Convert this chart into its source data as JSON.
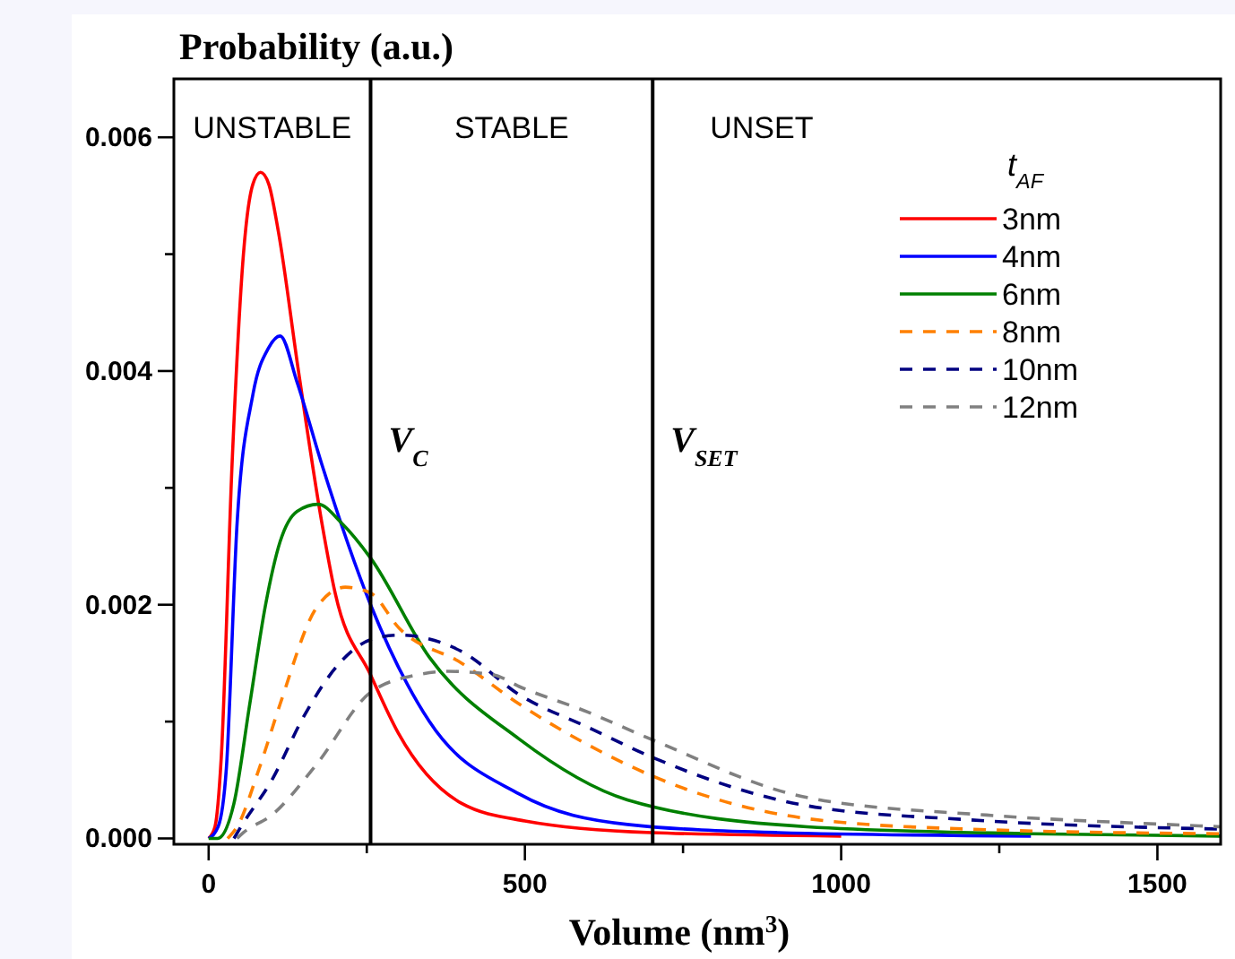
{
  "chart_data": {
    "type": "line",
    "title": "Probability (a.u.)",
    "xlabel": "Volume (nm$^{3}$)",
    "legend_title": "t$_{AF}$",
    "legend": "top right",
    "xlim": [
      -55,
      1600
    ],
    "ylim": [
      -5e-05,
      0.0065
    ],
    "xticks": [
      0,
      {
        "value": 250,
        "label": null
      },
      500,
      {
        "value": 750,
        "label": null
      },
      1000,
      {
        "value": 1250,
        "label": null
      },
      1500
    ],
    "yticks": [
      {
        "value": 0,
        "label": "0.000"
      },
      {
        "value": 0.001,
        "label": null
      },
      0.002,
      {
        "value": 0.003,
        "label": null
      },
      0.004,
      {
        "value": 0.005,
        "label": null
      },
      0.006
    ],
    "ref_lines": [
      {
        "axis": "x",
        "value": 256,
        "label": "V$_{C}$",
        "color": "#000000"
      },
      {
        "axis": "x",
        "value": 702,
        "label": "V$_{SET}$",
        "color": "#000000"
      }
    ],
    "annotations": [
      "UNSTABLE",
      "STABLE",
      "UNSET"
    ],
    "series": [
      {
        "name": "3nm",
        "color": "#ff0000",
        "line_style": "solid",
        "x": [
          0,
          10,
          20,
          37,
          55,
          70,
          82,
          95,
          110,
          142,
          179,
          200,
          256,
          300,
          400,
          500,
          700,
          1000
        ],
        "values": [
          0,
          0.0001,
          0.0007,
          0.0032,
          0.005,
          0.0056,
          0.0057,
          0.0056,
          0.0052,
          0.004,
          0.0027,
          0.0021,
          0.0014,
          0.0009,
          0.0003,
          0.00015,
          5e-05,
          2e-05
        ]
      },
      {
        "name": "4nm",
        "color": "#0000ff",
        "line_style": "solid",
        "x": [
          0,
          15,
          28,
          45,
          70,
          95,
          113,
          140,
          179,
          256,
          349,
          491,
          662,
          900,
          1300
        ],
        "values": [
          0,
          0.0001,
          0.0006,
          0.0027,
          0.0038,
          0.0042,
          0.0043,
          0.0039,
          0.0032,
          0.002,
          0.001,
          0.00038,
          0.00012,
          5e-05,
          2e-05
        ]
      },
      {
        "name": "6nm",
        "color": "#008000",
        "line_style": "solid",
        "x": [
          0,
          14,
          40,
          65,
          90,
          113,
          140,
          173,
          210,
          256,
          349,
          491,
          662,
          946,
          1300,
          1600
        ],
        "values": [
          0,
          0,
          0.0003,
          0.00115,
          0.002,
          0.00254,
          0.0028,
          0.00286,
          0.0027,
          0.0024,
          0.00155,
          0.00085,
          0.00033,
          0.0001,
          4e-05,
          2e-05
        ]
      },
      {
        "name": "8nm",
        "color": "#ff8000",
        "line_style": "dashed",
        "x": [
          30,
          45,
          80,
          113,
          170,
          216,
          256,
          301,
          400,
          491,
          600,
          699,
          946,
          1200,
          1600
        ],
        "values": [
          0,
          0.0001,
          0.0006,
          0.00115,
          0.00197,
          0.00215,
          0.0021,
          0.0018,
          0.0015,
          0.00115,
          0.0008,
          0.00054,
          0.00017,
          8e-05,
          4e-05
        ]
      },
      {
        "name": "10nm",
        "color": "#000080",
        "line_style": "dashed",
        "x": [
          40,
          51,
          100,
          151,
          207,
          256,
          301,
          400,
          491,
          600,
          699,
          946,
          1200,
          1600
        ],
        "values": [
          0,
          0.0001,
          0.0005,
          0.00105,
          0.0015,
          0.0017,
          0.00174,
          0.0016,
          0.00123,
          0.00095,
          0.0007,
          0.00028,
          0.00016,
          8e-05
        ]
      },
      {
        "name": "12nm",
        "color": "#808080",
        "line_style": "dashed",
        "x": [
          45,
          55,
          100,
          170,
          256,
          330,
          378,
          450,
          491,
          600,
          699,
          946,
          1230,
          1514,
          1600
        ],
        "values": [
          0,
          5e-05,
          0.0002,
          0.00063,
          0.00125,
          0.0014,
          0.00143,
          0.0014,
          0.0013,
          0.00108,
          0.00085,
          0.00035,
          0.0002,
          0.00012,
          0.0001
        ]
      }
    ]
  }
}
